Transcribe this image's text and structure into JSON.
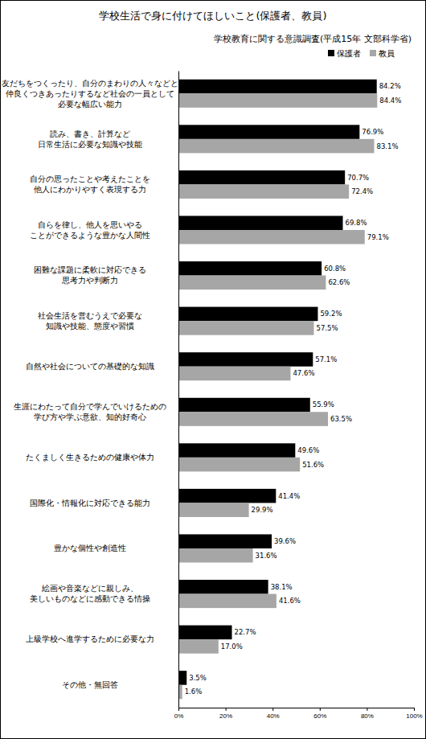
{
  "chart_data": {
    "type": "bar",
    "orientation": "horizontal",
    "title": "学校生活で身に付けてほしいこと(保護者、教員)",
    "subtitle": "学校教育に関する意識調査(平成15年 文部科学省)",
    "categories": [
      "友だちをつくったり、自分のまわりの人々などと\n仲良くつきあったりするなど社会の一員として\n必要な幅広い能力",
      "読み、書き、計算など\n日常生活に必要な知識や技能",
      "自分の思ったことや考えたことを\n他人にわかりやすく表現する力",
      "自らを律し、他人を思いやる\nことができるような豊かな人間性",
      "困難な課題に柔軟に対応できる\n思考力や判断力",
      "社会生活を営むうえで必要な\n知識や技能、態度や習慣",
      "自然や社会についての基礎的な知識",
      "生涯にわたって自分で学んでいけるための\n学び方や学ぶ意欲、知的好奇心",
      "たくましく生きるための健康や体力",
      "国際化・情報化に対応できる能力",
      "豊かな個性や創造性",
      "絵画や音楽などに親しみ、\n美しいものなどに感動できる情操",
      "上級学校へ進学するために必要な力",
      "その他・無回答"
    ],
    "series": [
      {
        "name": "保護者",
        "color": "#000000",
        "values": [
          84.2,
          76.9,
          70.7,
          69.8,
          60.8,
          59.2,
          57.1,
          55.9,
          49.6,
          41.4,
          39.6,
          38.1,
          22.7,
          3.5
        ],
        "value_labels": [
          "84.2%",
          "76.9%",
          "70.7%",
          "69.8%",
          "60.8%",
          "59.2%",
          "57.1%",
          "55.9%",
          "49.6%",
          "41.4%",
          "39.6%",
          "38.1%",
          "22.7%",
          "3.5%"
        ]
      },
      {
        "name": "教員",
        "color": "#a6a6a6",
        "values": [
          84.4,
          83.1,
          72.4,
          79.1,
          62.6,
          57.5,
          47.6,
          63.5,
          51.6,
          29.9,
          31.6,
          41.6,
          17.0,
          1.6
        ],
        "value_labels": [
          "84.4%",
          "83.1%",
          "72.4%",
          "79.1%",
          "62.6%",
          "57.5%",
          "47.6%",
          "63.5%",
          "51.6%",
          "29.9%",
          "31.6%",
          "41.6%",
          "17.0%",
          "1.6%"
        ]
      }
    ],
    "xlim": [
      0,
      100
    ],
    "xticks": [
      {
        "value": 0,
        "label": "0%"
      },
      {
        "value": 20,
        "label": "20%"
      },
      {
        "value": 40,
        "label": "40%"
      },
      {
        "value": 60,
        "label": "60%"
      },
      {
        "value": 80,
        "label": "80%"
      },
      {
        "value": 100,
        "label": "100%"
      }
    ],
    "grid": false,
    "legend": "top-right",
    "data_labels": true
  }
}
